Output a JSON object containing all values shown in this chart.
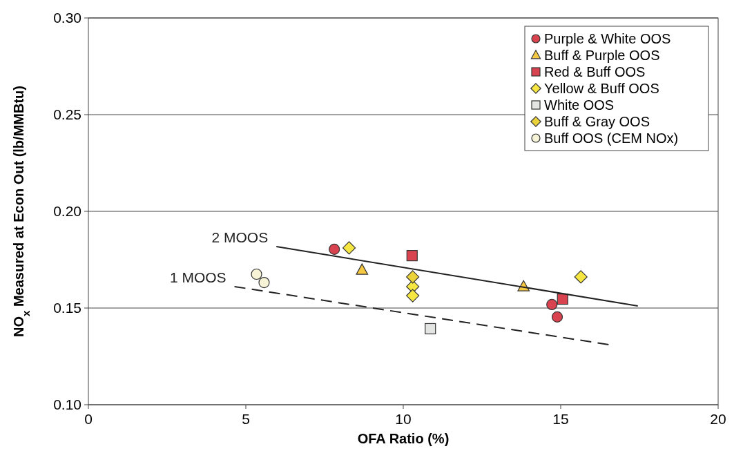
{
  "chart_data": {
    "type": "scatter",
    "xlabel": "OFA Ratio (%)",
    "ylabel": "NO$_{x}$ Measured at Econ Out (lb/MMBtu)",
    "xlim": [
      0,
      20
    ],
    "xticks": [
      0,
      5,
      10,
      15,
      20
    ],
    "ylim": [
      0.1,
      0.3
    ],
    "yticks": [
      {
        "value": 0.1,
        "label": "0.10"
      },
      {
        "value": 0.15,
        "label": "0.15"
      },
      {
        "value": 0.2,
        "label": "0.20"
      },
      {
        "value": 0.25,
        "label": "0.25"
      },
      {
        "value": 0.3,
        "label": "0.30"
      }
    ],
    "grid": "y",
    "legend": "top right",
    "series": [
      {
        "name": "Purple & White OOS",
        "color": "#d9434f",
        "marker": "circle",
        "x": [
          7.81,
          14.72,
          14.89
        ],
        "values": [
          0.1804,
          0.1518,
          0.1454
        ]
      },
      {
        "name": "Buff & Purple OOS",
        "color": "#f5c842",
        "marker": "triangle",
        "x": [
          8.69,
          13.82
        ],
        "values": [
          0.1696,
          0.161
        ]
      },
      {
        "name": "Red & Buff OOS",
        "color": "#d9434f",
        "marker": "square",
        "x": [
          10.28,
          15.06
        ],
        "values": [
          0.1771,
          0.1546
        ]
      },
      {
        "name": "Yellow & Buff OOS",
        "color": "#f5e642",
        "marker": "diamond",
        "x": [
          8.28,
          10.3,
          10.3,
          15.64
        ],
        "values": [
          0.1811,
          0.1611,
          0.1564,
          0.1661
        ]
      },
      {
        "name": "White OOS",
        "color": "#e3e5e3",
        "marker": "square",
        "x": [
          10.86
        ],
        "values": [
          0.1393
        ]
      },
      {
        "name": "Buff & Gray OOS",
        "color": "#ecd23a",
        "marker": "diamond",
        "x": [
          10.3
        ],
        "values": [
          0.1661
        ]
      },
      {
        "name": "Buff OOS (CEM NOx)",
        "color": "#f7f3d6",
        "marker": "circle",
        "x": [
          5.34,
          5.58
        ],
        "values": [
          0.1675,
          0.1632
        ]
      },
      {
        "name": "2 MOOS",
        "type": "line",
        "color": "#222222",
        "line_style": "solid",
        "marker": "none",
        "x": [
          5.97,
          17.45
        ],
        "values": [
          0.1818,
          0.1511
        ]
      },
      {
        "name": "1 MOOS",
        "type": "line",
        "color": "#222222",
        "line_style": "dashed",
        "marker": "none",
        "x": [
          4.64,
          16.52
        ],
        "values": [
          0.1611,
          0.1311
        ]
      }
    ]
  }
}
